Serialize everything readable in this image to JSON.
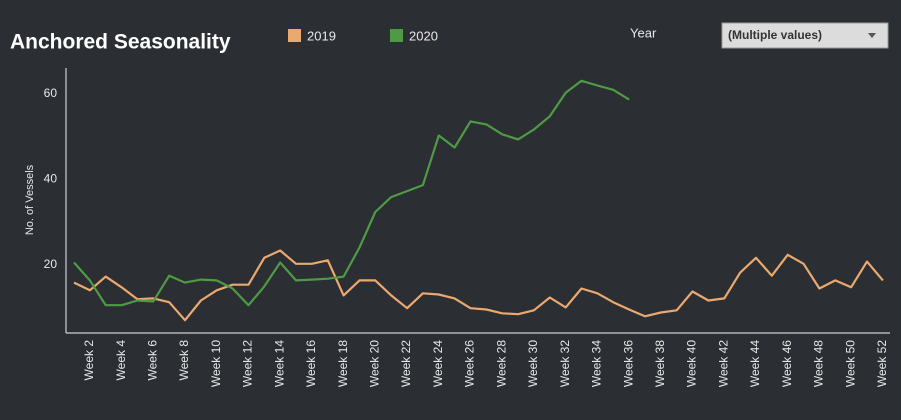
{
  "chart_data": {
    "type": "line",
    "title": "Anchored Seasonality",
    "ylabel": "No. of Vessels",
    "categories": [
      null,
      "Week 2",
      null,
      "Week 4",
      null,
      "Week 6",
      null,
      "Week 8",
      null,
      "Week 10",
      null,
      "Week 12",
      null,
      "Week 14",
      null,
      "Week 16",
      null,
      "Week 18",
      null,
      "Week 20",
      null,
      "Week 22",
      null,
      "Week 24",
      null,
      "Week 26",
      null,
      "Week 28",
      null,
      "Week 30",
      null,
      "Week 32",
      null,
      "Week 34",
      null,
      "Week 36",
      null,
      "Week 38",
      null,
      "Week 40",
      null,
      "Week 42",
      null,
      "Week 44",
      null,
      "Week 46",
      null,
      "Week 48",
      null,
      "Week 50",
      null,
      "Week 52"
    ],
    "series": [
      {
        "name": "2019",
        "color": "#eaa96f",
        "values": [
          15.8,
          14,
          17.2,
          14.7,
          11.9,
          12.1,
          11.2,
          7,
          11.6,
          14,
          15.3,
          15.3,
          21.6,
          23.3,
          20.2,
          20.2,
          21,
          12.8,
          16.3,
          16.3,
          12.8,
          9.8,
          13.3,
          13,
          12.1,
          9.8,
          9.5,
          8.6,
          8.4,
          9.3,
          12.3,
          10,
          14.4,
          13.3,
          11.2,
          9.5,
          7.9,
          8.8,
          9.3,
          13.7,
          11.6,
          12.1,
          18.1,
          21.6,
          17.4,
          22.3,
          20.2,
          14.4,
          16.3,
          14.7,
          20.7,
          16.3
        ]
      },
      {
        "name": "2020",
        "color": "#4f9a45",
        "values": [
          20.5,
          16.3,
          10.5,
          10.5,
          11.6,
          11.4,
          17.4,
          15.8,
          16.5,
          16.3,
          14.4,
          10.5,
          14.9,
          20.5,
          16.3,
          16.5,
          16.7,
          17.2,
          24,
          32.3,
          35.8,
          37.2,
          38.6,
          50.2,
          47.4,
          53.5,
          52.8,
          50.5,
          49.3,
          51.6,
          54.7,
          60.2,
          63,
          61.9,
          60.9,
          58.6,
          null,
          null,
          null,
          null,
          null,
          null,
          null,
          null,
          null,
          null,
          null,
          null,
          null,
          null,
          null,
          null
        ]
      }
    ],
    "ylim": [
      4,
      66
    ],
    "yticks": [
      20,
      40,
      60
    ],
    "grid": false,
    "legend": "top"
  },
  "filter": {
    "label": "Year",
    "value": "(Multiple values)"
  }
}
